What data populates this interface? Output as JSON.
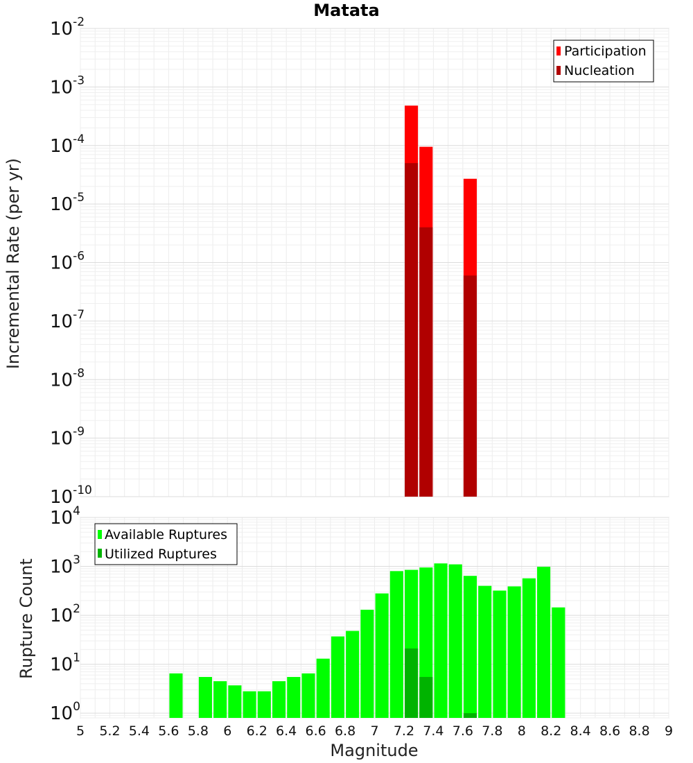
{
  "chart_data": [
    {
      "type": "bar",
      "title": "Matata",
      "ylabel": "Incremental Rate (per yr)",
      "xlim": [
        5,
        9
      ],
      "ylim": [
        1e-10,
        0.01
      ],
      "y_scale": "log",
      "grid": true,
      "legend_position": "top-right",
      "y_ticks": [
        {
          "base": "10",
          "exp": "-2"
        },
        {
          "base": "10",
          "exp": "-3"
        },
        {
          "base": "10",
          "exp": "-4"
        },
        {
          "base": "10",
          "exp": "-5"
        },
        {
          "base": "10",
          "exp": "-6"
        },
        {
          "base": "10",
          "exp": "-7"
        },
        {
          "base": "10",
          "exp": "-8"
        },
        {
          "base": "10",
          "exp": "-9"
        },
        {
          "base": "10",
          "exp": "-10"
        }
      ],
      "series": [
        {
          "name": "Participation",
          "color": "#ff0000",
          "points": [
            [
              7.25,
              0.00048
            ],
            [
              7.35,
              9.5e-05
            ],
            [
              7.65,
              2.7e-05
            ]
          ]
        },
        {
          "name": "Nucleation",
          "color": "#b00000",
          "points": [
            [
              7.25,
              5e-05
            ],
            [
              7.35,
              4e-06
            ],
            [
              7.65,
              6e-07
            ]
          ]
        }
      ]
    },
    {
      "type": "bar",
      "xlabel": "Magnitude",
      "ylabel": "Rupture Count",
      "xlim": [
        5,
        9
      ],
      "ylim": [
        0.8,
        10000
      ],
      "y_scale": "log",
      "grid": true,
      "legend_position": "top-left",
      "y_ticks": [
        {
          "base": "10",
          "exp": "4"
        },
        {
          "base": "10",
          "exp": "3"
        },
        {
          "base": "10",
          "exp": "2"
        },
        {
          "base": "10",
          "exp": "1"
        },
        {
          "base": "10",
          "exp": "0"
        }
      ],
      "x_ticks": [
        "5",
        "5.2",
        "5.4",
        "5.6",
        "5.8",
        "6",
        "6.2",
        "6.4",
        "6.6",
        "6.8",
        "7",
        "7.2",
        "7.4",
        "7.6",
        "7.8",
        "8",
        "8.2",
        "8.4",
        "8.6",
        "8.8",
        "9"
      ],
      "series": [
        {
          "name": "Available Ruptures",
          "color": "#00ff00",
          "points": [
            [
              5.65,
              6.5
            ],
            [
              5.85,
              5.5
            ],
            [
              5.95,
              4.5
            ],
            [
              6.05,
              3.7
            ],
            [
              6.15,
              2.8
            ],
            [
              6.25,
              2.8
            ],
            [
              6.35,
              4.5
            ],
            [
              6.45,
              5.5
            ],
            [
              6.55,
              6.5
            ],
            [
              6.65,
              13
            ],
            [
              6.75,
              37
            ],
            [
              6.85,
              48
            ],
            [
              6.95,
              130
            ],
            [
              7.05,
              280
            ],
            [
              7.15,
              800
            ],
            [
              7.25,
              850
            ],
            [
              7.35,
              950
            ],
            [
              7.45,
              1150
            ],
            [
              7.55,
              1100
            ],
            [
              7.65,
              640
            ],
            [
              7.75,
              400
            ],
            [
              7.85,
              320
            ],
            [
              7.95,
              390
            ],
            [
              8.05,
              570
            ],
            [
              8.15,
              980
            ],
            [
              8.25,
              145
            ]
          ]
        },
        {
          "name": "Utilized Ruptures",
          "color": "#00b300",
          "points": [
            [
              7.25,
              21
            ],
            [
              7.35,
              5.5
            ],
            [
              7.65,
              1
            ]
          ]
        }
      ]
    }
  ]
}
